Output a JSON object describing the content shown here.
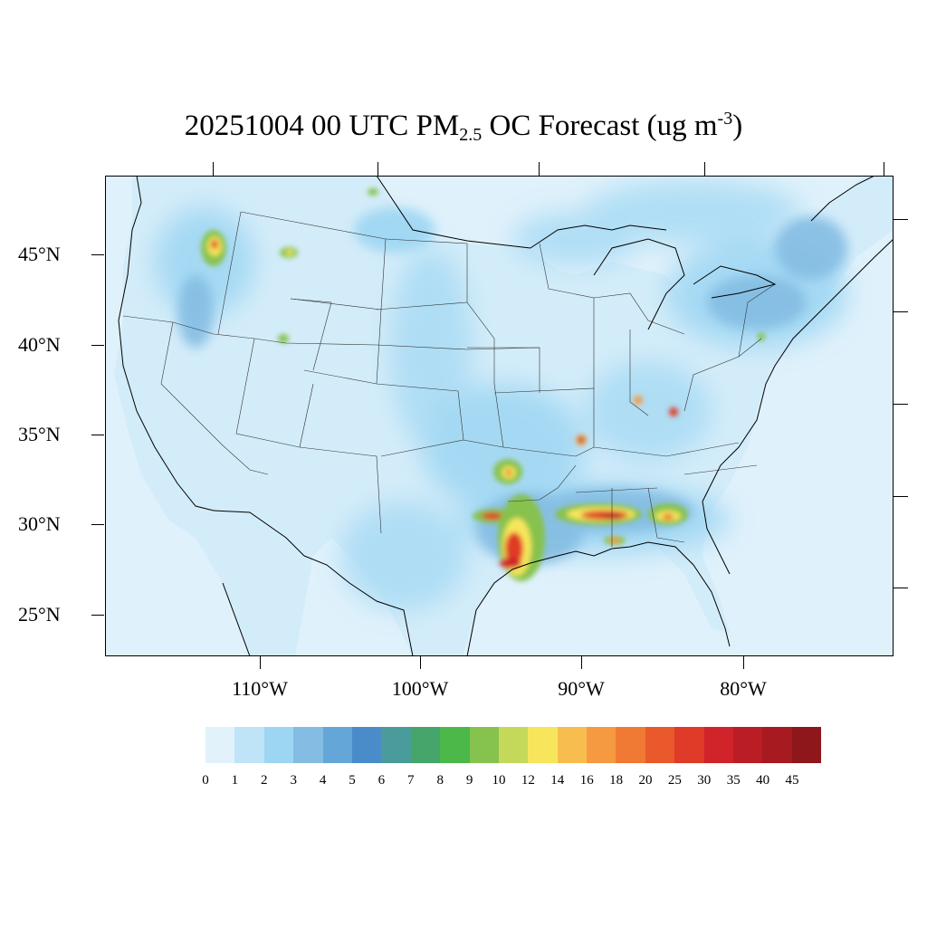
{
  "title": {
    "prefix": "20251004 00 UTC PM",
    "subscript": "2.5",
    "middle": " OC Forecast (ug m",
    "superscript": "-3",
    "suffix": ")"
  },
  "lat_labels": [
    "45°N",
    "40°N",
    "35°N",
    "30°N",
    "25°N"
  ],
  "lon_labels": [
    "110°W",
    "100°W",
    "90°W",
    "80°W"
  ],
  "colorbar": {
    "labels": [
      "0",
      "1",
      "2",
      "3",
      "4",
      "5",
      "6",
      "7",
      "8",
      "9",
      "10",
      "12",
      "14",
      "16",
      "18",
      "20",
      "25",
      "30",
      "35",
      "40",
      "45"
    ],
    "colors": [
      "#e1f2fb",
      "#bfe4f7",
      "#9dd6f3",
      "#84bde3",
      "#65a6d8",
      "#4a8cc9",
      "#4a9c9a",
      "#46a56a",
      "#4cb84a",
      "#86c24e",
      "#c4d95a",
      "#f7e65c",
      "#f8bd4f",
      "#f59a40",
      "#f07a33",
      "#e9592c",
      "#e03a28",
      "#d1232a",
      "#bb1d25",
      "#a61a20",
      "#8e171c"
    ]
  },
  "map": {
    "ocean_color": "#dff1fb",
    "land_base_color": "#d3ecf9"
  }
}
